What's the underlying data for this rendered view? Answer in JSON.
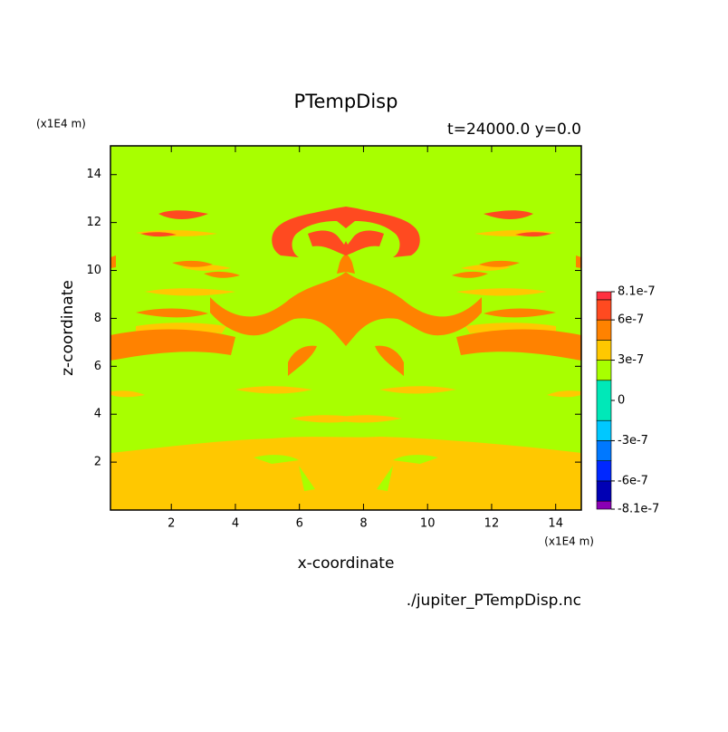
{
  "chart_data": {
    "type": "contour",
    "title": "PTempDisp",
    "subtitle": "t=24000.0 y=0.0",
    "x_label": "x-coordinate",
    "y_label": "z-coordinate",
    "x_unit": "(x1E4 m)",
    "y_unit": "(x1E4 m)",
    "source": "./jupiter_PTempDisp.nc",
    "xlim": [
      0.1,
      14.8
    ],
    "ylim": [
      0,
      15.2
    ],
    "xticks": [
      2,
      4,
      6,
      8,
      10,
      12,
      14
    ],
    "yticks": [
      2,
      4,
      6,
      8,
      10,
      12,
      14
    ],
    "colorbar": {
      "levels": [
        -8.1e-07,
        -7.5e-07,
        -6e-07,
        -4.5e-07,
        -3e-07,
        -1.5e-07,
        1.5e-07,
        3e-07,
        4.5e-07,
        6e-07,
        7.5e-07,
        8.1e-07
      ],
      "colors": [
        "#8a00b4",
        "#0000b4",
        "#0028ff",
        "#0078ff",
        "#00c8ff",
        "#00e8b8",
        "#a8ff00",
        "#ffc800",
        "#ff8200",
        "#ff4a20",
        "#ff3040"
      ],
      "ticks": [
        -8.1e-07,
        -6e-07,
        -3e-07,
        0,
        3e-07,
        6e-07,
        8.1e-07
      ]
    }
  }
}
